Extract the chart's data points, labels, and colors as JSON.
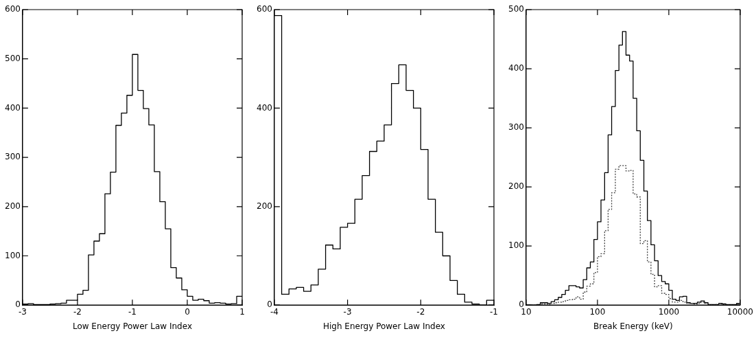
{
  "chart_data": [
    {
      "type": "histogram",
      "xlabel": "Low Energy Power Law Index",
      "bins": [
        -3,
        -2.9,
        -2.8,
        -2.7,
        -2.6,
        -2.5,
        -2.4,
        -2.3,
        -2.2,
        -2.1,
        -2,
        -1.9,
        -1.8,
        -1.7,
        -1.6,
        -1.5,
        -1.4,
        -1.3,
        -1.2,
        -1.1,
        -1,
        -0.9,
        -0.8,
        -0.7,
        -0.6,
        -0.5,
        -0.4,
        -0.3,
        -0.2,
        -0.1,
        0,
        0.1,
        0.2,
        0.3,
        0.4,
        0.5,
        0.6,
        0.7,
        0.8,
        0.9,
        1
      ],
      "values": [
        2,
        3,
        1,
        1,
        1,
        2,
        3,
        4,
        10,
        10,
        22,
        30,
        102,
        130,
        145,
        226,
        270,
        365,
        390,
        426,
        509,
        436,
        399,
        366,
        271,
        210,
        155,
        76,
        55,
        31,
        18,
        10,
        12,
        9,
        4,
        5,
        4,
        2,
        3,
        18
      ],
      "color": "#000000",
      "xlim": [
        -3,
        1
      ],
      "xticks": [
        -3,
        -2,
        -1,
        0,
        1
      ],
      "ylim": [
        0,
        600
      ],
      "yticks": [
        0,
        100,
        200,
        300,
        400,
        500,
        600
      ],
      "line_style": "solid"
    },
    {
      "type": "histogram",
      "xlabel": "High Energy Power Law Index",
      "bins": [
        -4,
        -3.9,
        -3.8,
        -3.7,
        -3.6,
        -3.5,
        -3.4,
        -3.3,
        -3.2,
        -3.1,
        -3,
        -2.9,
        -2.8,
        -2.7,
        -2.6,
        -2.5,
        -2.4,
        -2.3,
        -2.2,
        -2.1,
        -2,
        -1.9,
        -1.8,
        -1.7,
        -1.6,
        -1.5,
        -1.4,
        -1.3,
        -1.2,
        -1.1,
        -1
      ],
      "values": [
        588,
        22,
        33,
        36,
        28,
        41,
        73,
        122,
        114,
        158,
        166,
        215,
        263,
        312,
        333,
        366,
        450,
        488,
        436,
        400,
        316,
        215,
        148,
        100,
        50,
        22,
        6,
        2,
        0,
        10
      ],
      "color": "#000000",
      "xlim": [
        -4,
        -1
      ],
      "xticks": [
        -4,
        -3,
        -2,
        -1
      ],
      "ylim": [
        0,
        600
      ],
      "yticks": [
        0,
        200,
        400,
        600
      ],
      "line_style": "solid"
    },
    {
      "type": "histogram",
      "xlabel": "Break Energy (keV)",
      "log": "x",
      "bins": [
        10,
        11.2,
        12.6,
        14.1,
        15.8,
        17.8,
        20,
        22.4,
        25.1,
        28.2,
        31.6,
        35.5,
        39.8,
        44.7,
        50.1,
        56.2,
        63.1,
        70.8,
        79.4,
        89.1,
        100,
        112,
        126,
        141,
        158,
        178,
        200,
        224,
        251,
        282,
        316,
        355,
        398,
        447,
        501,
        562,
        631,
        708,
        794,
        891,
        1000,
        1120,
        1260,
        1410,
        1580,
        1780,
        2000,
        2240,
        2510,
        2820,
        3160,
        3550,
        3980,
        4470,
        5010,
        5620,
        6310,
        7080,
        7940,
        8910,
        10000
      ],
      "series": [
        {
          "color": "#000000",
          "line_style": "solid",
          "values": [
            0,
            0,
            0,
            1,
            4,
            4,
            3,
            6,
            9,
            13,
            18,
            25,
            33,
            33,
            31,
            29,
            43,
            63,
            73,
            111,
            141,
            178,
            224,
            288,
            336,
            397,
            440,
            463,
            423,
            413,
            350,
            295,
            245,
            193,
            143,
            102,
            75,
            50,
            40,
            36,
            25,
            10,
            8,
            14,
            15,
            4,
            3,
            3,
            5,
            7,
            4,
            1,
            1,
            1,
            3,
            2,
            1,
            1,
            1,
            3
          ]
        },
        {
          "color": "#404040",
          "line_style": "dotted",
          "values": [
            0,
            0,
            0,
            0,
            2,
            2,
            1,
            3,
            4,
            5,
            6,
            8,
            9,
            10,
            14,
            10,
            22,
            32,
            36,
            55,
            82,
            87,
            126,
            162,
            190,
            230,
            236,
            236,
            227,
            228,
            188,
            183,
            104,
            109,
            73,
            52,
            31,
            33,
            20,
            18,
            11,
            5,
            5,
            8,
            5,
            3,
            3,
            2,
            3,
            5,
            3,
            1,
            0,
            1,
            2,
            1,
            0,
            0,
            0,
            2
          ]
        }
      ],
      "xlim": [
        10,
        10000
      ],
      "xticks": [
        10,
        100,
        1000,
        10000
      ],
      "ylim": [
        0,
        500
      ],
      "yticks": [
        0,
        100,
        200,
        300,
        400,
        500
      ]
    }
  ]
}
